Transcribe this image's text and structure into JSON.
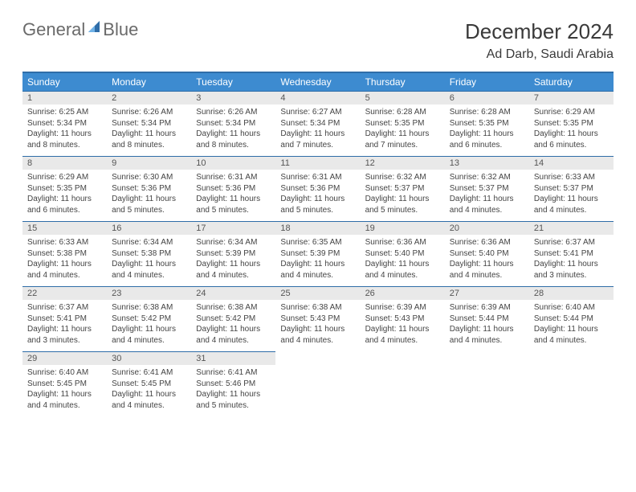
{
  "logo": {
    "word1": "General",
    "word2": "Blue"
  },
  "title": "December 2024",
  "location": "Ad Darb, Saudi Arabia",
  "colors": {
    "header_bg": "#3d8bd0",
    "header_border": "#2f6da8",
    "daynum_bg": "#e9e9e9",
    "text": "#444444",
    "logo_gray": "#6a6a6a",
    "logo_blue": "#2f6da8"
  },
  "weekdays": [
    "Sunday",
    "Monday",
    "Tuesday",
    "Wednesday",
    "Thursday",
    "Friday",
    "Saturday"
  ],
  "weeks": [
    [
      {
        "n": "1",
        "sr": "Sunrise: 6:25 AM",
        "ss": "Sunset: 5:34 PM",
        "dl": "Daylight: 11 hours and 8 minutes."
      },
      {
        "n": "2",
        "sr": "Sunrise: 6:26 AM",
        "ss": "Sunset: 5:34 PM",
        "dl": "Daylight: 11 hours and 8 minutes."
      },
      {
        "n": "3",
        "sr": "Sunrise: 6:26 AM",
        "ss": "Sunset: 5:34 PM",
        "dl": "Daylight: 11 hours and 8 minutes."
      },
      {
        "n": "4",
        "sr": "Sunrise: 6:27 AM",
        "ss": "Sunset: 5:34 PM",
        "dl": "Daylight: 11 hours and 7 minutes."
      },
      {
        "n": "5",
        "sr": "Sunrise: 6:28 AM",
        "ss": "Sunset: 5:35 PM",
        "dl": "Daylight: 11 hours and 7 minutes."
      },
      {
        "n": "6",
        "sr": "Sunrise: 6:28 AM",
        "ss": "Sunset: 5:35 PM",
        "dl": "Daylight: 11 hours and 6 minutes."
      },
      {
        "n": "7",
        "sr": "Sunrise: 6:29 AM",
        "ss": "Sunset: 5:35 PM",
        "dl": "Daylight: 11 hours and 6 minutes."
      }
    ],
    [
      {
        "n": "8",
        "sr": "Sunrise: 6:29 AM",
        "ss": "Sunset: 5:35 PM",
        "dl": "Daylight: 11 hours and 6 minutes."
      },
      {
        "n": "9",
        "sr": "Sunrise: 6:30 AM",
        "ss": "Sunset: 5:36 PM",
        "dl": "Daylight: 11 hours and 5 minutes."
      },
      {
        "n": "10",
        "sr": "Sunrise: 6:31 AM",
        "ss": "Sunset: 5:36 PM",
        "dl": "Daylight: 11 hours and 5 minutes."
      },
      {
        "n": "11",
        "sr": "Sunrise: 6:31 AM",
        "ss": "Sunset: 5:36 PM",
        "dl": "Daylight: 11 hours and 5 minutes."
      },
      {
        "n": "12",
        "sr": "Sunrise: 6:32 AM",
        "ss": "Sunset: 5:37 PM",
        "dl": "Daylight: 11 hours and 5 minutes."
      },
      {
        "n": "13",
        "sr": "Sunrise: 6:32 AM",
        "ss": "Sunset: 5:37 PM",
        "dl": "Daylight: 11 hours and 4 minutes."
      },
      {
        "n": "14",
        "sr": "Sunrise: 6:33 AM",
        "ss": "Sunset: 5:37 PM",
        "dl": "Daylight: 11 hours and 4 minutes."
      }
    ],
    [
      {
        "n": "15",
        "sr": "Sunrise: 6:33 AM",
        "ss": "Sunset: 5:38 PM",
        "dl": "Daylight: 11 hours and 4 minutes."
      },
      {
        "n": "16",
        "sr": "Sunrise: 6:34 AM",
        "ss": "Sunset: 5:38 PM",
        "dl": "Daylight: 11 hours and 4 minutes."
      },
      {
        "n": "17",
        "sr": "Sunrise: 6:34 AM",
        "ss": "Sunset: 5:39 PM",
        "dl": "Daylight: 11 hours and 4 minutes."
      },
      {
        "n": "18",
        "sr": "Sunrise: 6:35 AM",
        "ss": "Sunset: 5:39 PM",
        "dl": "Daylight: 11 hours and 4 minutes."
      },
      {
        "n": "19",
        "sr": "Sunrise: 6:36 AM",
        "ss": "Sunset: 5:40 PM",
        "dl": "Daylight: 11 hours and 4 minutes."
      },
      {
        "n": "20",
        "sr": "Sunrise: 6:36 AM",
        "ss": "Sunset: 5:40 PM",
        "dl": "Daylight: 11 hours and 4 minutes."
      },
      {
        "n": "21",
        "sr": "Sunrise: 6:37 AM",
        "ss": "Sunset: 5:41 PM",
        "dl": "Daylight: 11 hours and 3 minutes."
      }
    ],
    [
      {
        "n": "22",
        "sr": "Sunrise: 6:37 AM",
        "ss": "Sunset: 5:41 PM",
        "dl": "Daylight: 11 hours and 3 minutes."
      },
      {
        "n": "23",
        "sr": "Sunrise: 6:38 AM",
        "ss": "Sunset: 5:42 PM",
        "dl": "Daylight: 11 hours and 4 minutes."
      },
      {
        "n": "24",
        "sr": "Sunrise: 6:38 AM",
        "ss": "Sunset: 5:42 PM",
        "dl": "Daylight: 11 hours and 4 minutes."
      },
      {
        "n": "25",
        "sr": "Sunrise: 6:38 AM",
        "ss": "Sunset: 5:43 PM",
        "dl": "Daylight: 11 hours and 4 minutes."
      },
      {
        "n": "26",
        "sr": "Sunrise: 6:39 AM",
        "ss": "Sunset: 5:43 PM",
        "dl": "Daylight: 11 hours and 4 minutes."
      },
      {
        "n": "27",
        "sr": "Sunrise: 6:39 AM",
        "ss": "Sunset: 5:44 PM",
        "dl": "Daylight: 11 hours and 4 minutes."
      },
      {
        "n": "28",
        "sr": "Sunrise: 6:40 AM",
        "ss": "Sunset: 5:44 PM",
        "dl": "Daylight: 11 hours and 4 minutes."
      }
    ],
    [
      {
        "n": "29",
        "sr": "Sunrise: 6:40 AM",
        "ss": "Sunset: 5:45 PM",
        "dl": "Daylight: 11 hours and 4 minutes."
      },
      {
        "n": "30",
        "sr": "Sunrise: 6:41 AM",
        "ss": "Sunset: 5:45 PM",
        "dl": "Daylight: 11 hours and 4 minutes."
      },
      {
        "n": "31",
        "sr": "Sunrise: 6:41 AM",
        "ss": "Sunset: 5:46 PM",
        "dl": "Daylight: 11 hours and 5 minutes."
      },
      null,
      null,
      null,
      null
    ]
  ]
}
